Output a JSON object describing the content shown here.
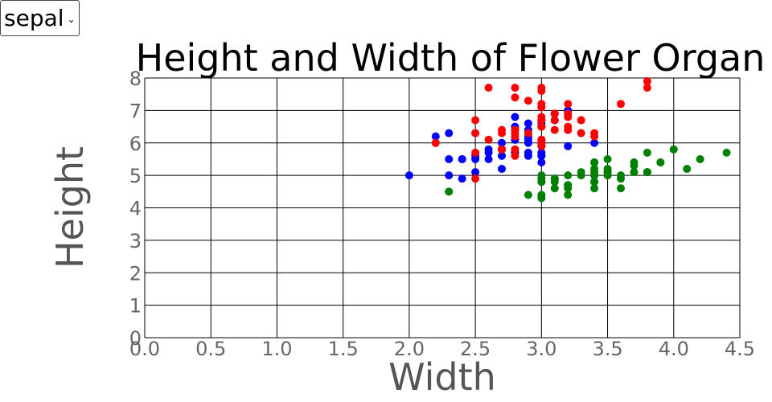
{
  "dropdown": {
    "selected": "sepal"
  },
  "chart_data": {
    "type": "scatter",
    "title": "Height and Width of Flower Organ",
    "xlabel": "Width",
    "ylabel": "Height",
    "xlim": [
      0,
      4.5
    ],
    "ylim": [
      0,
      8
    ],
    "xticks": [
      "0.0",
      "0.5",
      "1.0",
      "1.5",
      "2.0",
      "2.5",
      "3.0",
      "3.5",
      "4.0",
      "4.5"
    ],
    "yticks": [
      "0",
      "1",
      "2",
      "3",
      "4",
      "5",
      "6",
      "7",
      "8"
    ],
    "grid": true,
    "legend": "none",
    "series": [
      {
        "color": "#008000",
        "points": [
          [
            3.5,
            5.1
          ],
          [
            3.0,
            4.9
          ],
          [
            3.2,
            4.7
          ],
          [
            3.1,
            4.6
          ],
          [
            3.6,
            5.0
          ],
          [
            3.9,
            5.4
          ],
          [
            3.4,
            4.6
          ],
          [
            3.4,
            5.0
          ],
          [
            2.9,
            4.4
          ],
          [
            3.1,
            4.9
          ],
          [
            3.7,
            5.4
          ],
          [
            3.4,
            4.8
          ],
          [
            3.0,
            4.8
          ],
          [
            3.0,
            4.3
          ],
          [
            4.0,
            5.8
          ],
          [
            4.4,
            5.7
          ],
          [
            3.9,
            5.4
          ],
          [
            3.5,
            5.1
          ],
          [
            3.8,
            5.7
          ],
          [
            3.8,
            5.1
          ],
          [
            3.4,
            5.4
          ],
          [
            3.7,
            5.1
          ],
          [
            3.6,
            4.6
          ],
          [
            3.3,
            5.1
          ],
          [
            3.4,
            4.8
          ],
          [
            3.0,
            5.0
          ],
          [
            3.4,
            5.0
          ],
          [
            3.5,
            5.2
          ],
          [
            3.4,
            5.2
          ],
          [
            3.2,
            4.7
          ],
          [
            3.1,
            4.8
          ],
          [
            3.4,
            5.4
          ],
          [
            4.1,
            5.2
          ],
          [
            4.2,
            5.5
          ],
          [
            3.1,
            4.9
          ],
          [
            3.2,
            5.0
          ],
          [
            3.5,
            5.5
          ],
          [
            3.6,
            4.9
          ],
          [
            3.0,
            4.4
          ],
          [
            3.4,
            5.1
          ],
          [
            3.5,
            5.0
          ],
          [
            2.3,
            4.5
          ],
          [
            3.2,
            4.4
          ],
          [
            3.5,
            5.0
          ],
          [
            3.8,
            5.1
          ],
          [
            3.0,
            4.8
          ],
          [
            3.8,
            5.1
          ],
          [
            3.2,
            4.6
          ],
          [
            3.7,
            5.3
          ],
          [
            3.3,
            5.0
          ]
        ]
      },
      {
        "color": "#0000ff",
        "points": [
          [
            3.2,
            7.0
          ],
          [
            3.2,
            6.4
          ],
          [
            3.1,
            6.9
          ],
          [
            2.3,
            5.5
          ],
          [
            2.8,
            6.5
          ],
          [
            2.8,
            5.7
          ],
          [
            3.3,
            6.3
          ],
          [
            2.4,
            4.9
          ],
          [
            2.9,
            6.6
          ],
          [
            2.7,
            5.2
          ],
          [
            2.0,
            5.0
          ],
          [
            3.0,
            5.9
          ],
          [
            2.2,
            6.0
          ],
          [
            2.9,
            6.1
          ],
          [
            2.9,
            5.6
          ],
          [
            3.1,
            6.7
          ],
          [
            3.0,
            5.6
          ],
          [
            2.7,
            5.8
          ],
          [
            2.2,
            6.2
          ],
          [
            2.5,
            5.6
          ],
          [
            3.2,
            5.9
          ],
          [
            2.8,
            6.1
          ],
          [
            2.5,
            6.3
          ],
          [
            2.8,
            6.1
          ],
          [
            2.9,
            6.4
          ],
          [
            3.0,
            6.6
          ],
          [
            2.8,
            6.8
          ],
          [
            3.0,
            6.7
          ],
          [
            2.9,
            6.0
          ],
          [
            2.6,
            5.7
          ],
          [
            2.4,
            5.5
          ],
          [
            2.4,
            5.5
          ],
          [
            2.7,
            5.8
          ],
          [
            2.7,
            6.0
          ],
          [
            3.0,
            5.4
          ],
          [
            3.4,
            6.0
          ],
          [
            3.1,
            6.7
          ],
          [
            2.3,
            6.3
          ],
          [
            3.0,
            5.6
          ],
          [
            2.5,
            5.5
          ],
          [
            2.6,
            5.5
          ],
          [
            3.0,
            6.1
          ],
          [
            2.6,
            5.8
          ],
          [
            2.3,
            5.0
          ],
          [
            2.7,
            5.6
          ],
          [
            3.0,
            5.7
          ],
          [
            2.9,
            5.7
          ],
          [
            2.9,
            6.2
          ],
          [
            2.5,
            5.1
          ],
          [
            2.8,
            5.7
          ]
        ]
      },
      {
        "color": "#ff0000",
        "points": [
          [
            3.3,
            6.3
          ],
          [
            2.7,
            5.8
          ],
          [
            3.0,
            7.1
          ],
          [
            2.9,
            6.3
          ],
          [
            3.0,
            6.5
          ],
          [
            3.0,
            7.6
          ],
          [
            2.5,
            4.9
          ],
          [
            2.9,
            7.3
          ],
          [
            2.5,
            6.7
          ],
          [
            3.6,
            7.2
          ],
          [
            3.2,
            6.5
          ],
          [
            2.7,
            6.4
          ],
          [
            3.0,
            6.8
          ],
          [
            2.5,
            5.7
          ],
          [
            2.8,
            5.8
          ],
          [
            3.2,
            6.4
          ],
          [
            3.0,
            6.5
          ],
          [
            3.8,
            7.7
          ],
          [
            2.6,
            7.7
          ],
          [
            2.2,
            6.0
          ],
          [
            3.2,
            6.9
          ],
          [
            2.8,
            5.6
          ],
          [
            2.8,
            7.7
          ],
          [
            2.7,
            6.3
          ],
          [
            3.3,
            6.7
          ],
          [
            3.2,
            7.2
          ],
          [
            2.8,
            6.2
          ],
          [
            3.0,
            6.1
          ],
          [
            2.8,
            6.4
          ],
          [
            3.0,
            7.2
          ],
          [
            2.8,
            7.4
          ],
          [
            3.8,
            7.9
          ],
          [
            2.8,
            6.4
          ],
          [
            2.8,
            6.3
          ],
          [
            2.6,
            6.1
          ],
          [
            3.0,
            7.7
          ],
          [
            3.4,
            6.3
          ],
          [
            3.1,
            6.4
          ],
          [
            3.0,
            6.0
          ],
          [
            3.1,
            6.9
          ],
          [
            3.1,
            6.7
          ],
          [
            3.1,
            6.9
          ],
          [
            2.7,
            5.8
          ],
          [
            3.2,
            6.8
          ],
          [
            3.3,
            6.7
          ],
          [
            3.0,
            6.7
          ],
          [
            2.5,
            6.3
          ],
          [
            3.0,
            6.5
          ],
          [
            3.4,
            6.2
          ],
          [
            3.0,
            5.9
          ]
        ]
      }
    ]
  }
}
